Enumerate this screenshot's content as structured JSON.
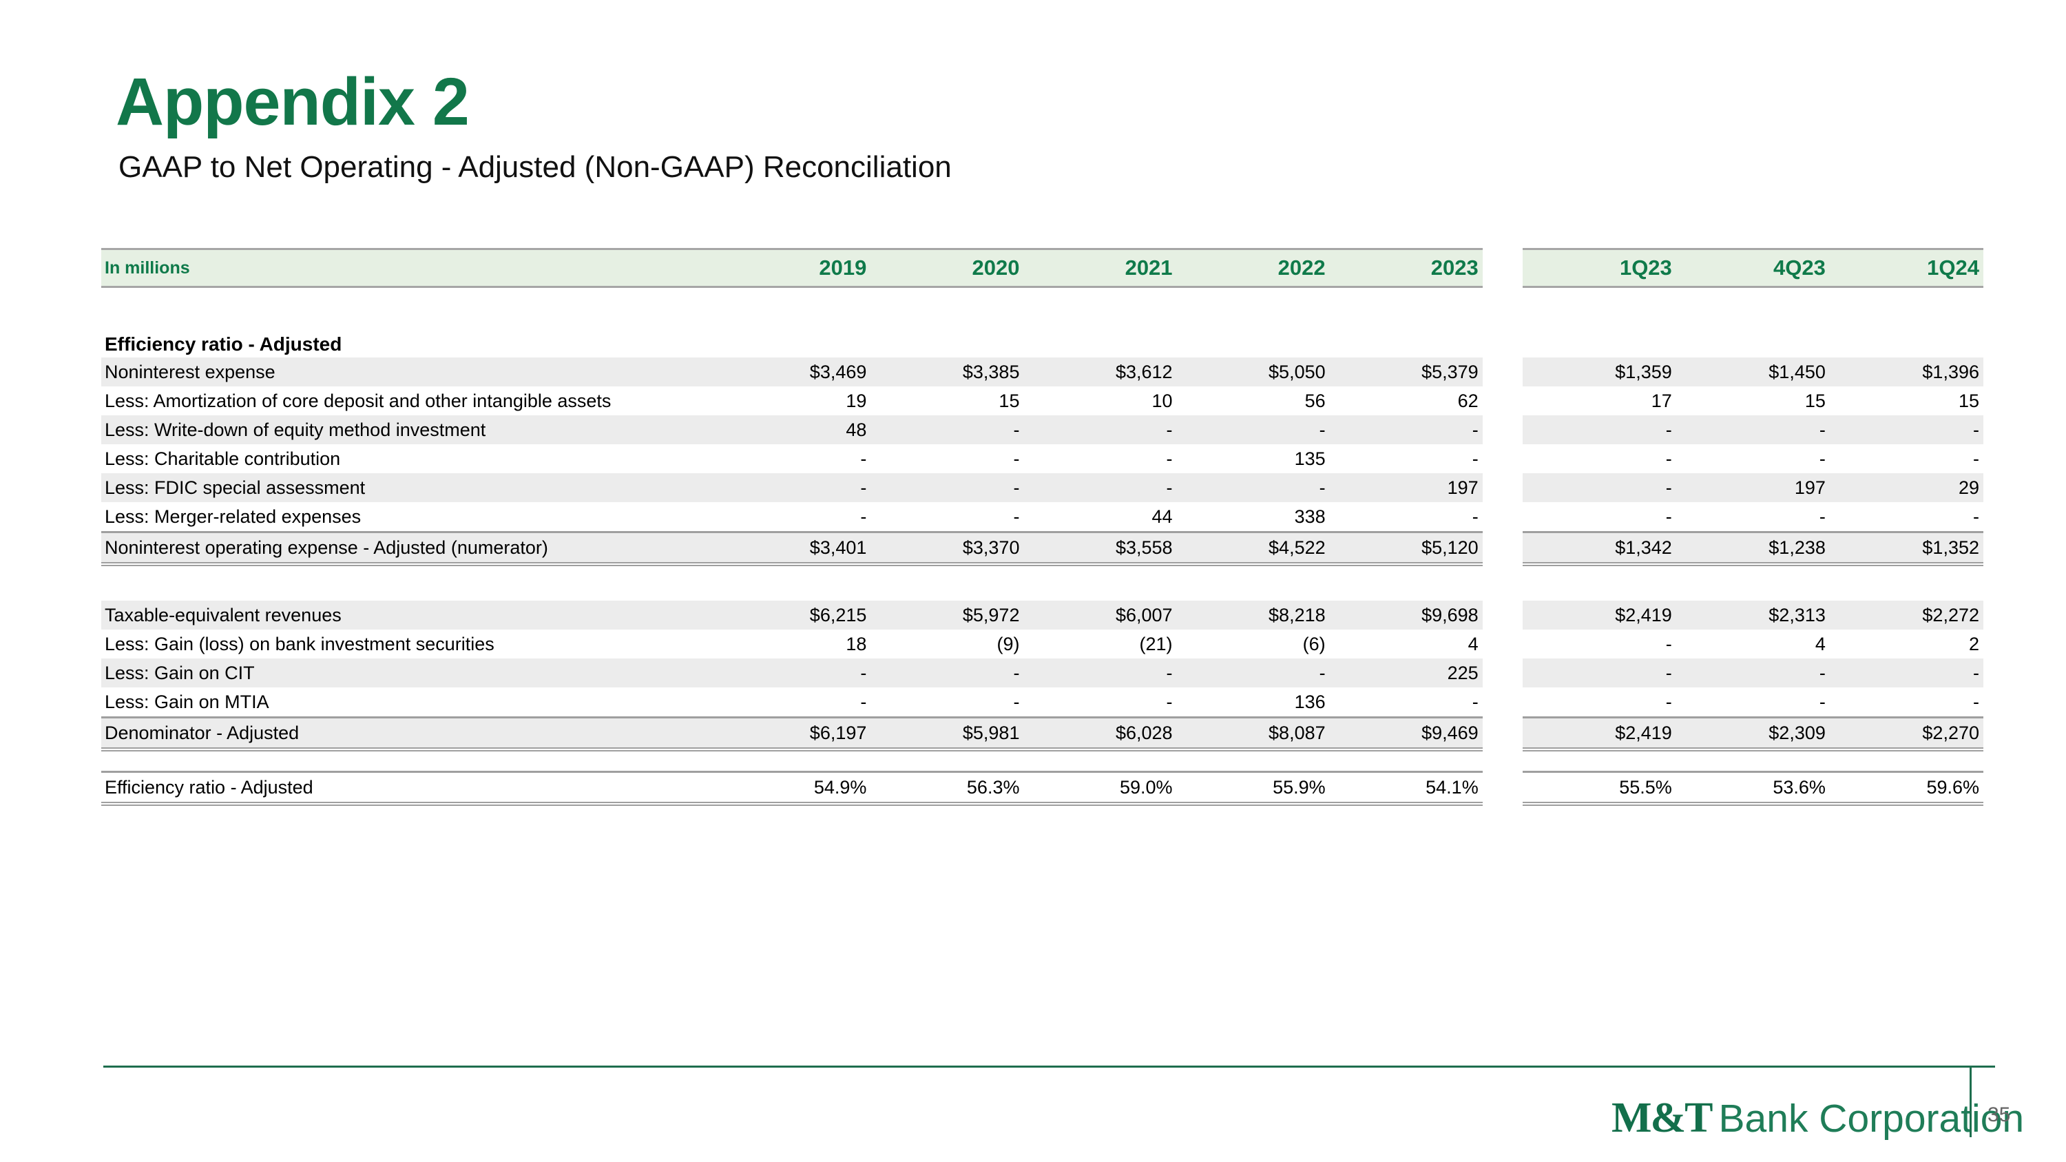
{
  "slide": {
    "title": "Appendix 2",
    "subtitle": "GAAP to Net Operating - Adjusted (Non-GAAP) Reconciliation",
    "page_number": "35",
    "logo_bold": "M&T",
    "logo_rest": "Bank Corporation"
  },
  "colors": {
    "brand_green": "#12774a",
    "header_band_bg": "#e6f0e3",
    "row_band_bg": "#ececec",
    "border_gray": "#9f9f9f",
    "footer_rule_green": "#1e6e4e",
    "page_number_gray": "#666666"
  },
  "table": {
    "unit_label": "In millions",
    "columns": [
      "2019",
      "2020",
      "2021",
      "2022",
      "2023",
      "1Q23",
      "4Q23",
      "1Q24"
    ],
    "gap_after_column_index": 4,
    "sections": [
      {
        "heading": "Efficiency ratio - Adjusted",
        "spacer_before": 60,
        "rows": [
          {
            "label": "Noninterest expense",
            "values": [
              "$3,469",
              "$3,385",
              "$3,612",
              "$5,050",
              "$5,379",
              "$1,359",
              "$1,450",
              "$1,396"
            ],
            "shaded": true,
            "total": false
          },
          {
            "label": "Less: Amortization of core deposit and other intangible assets",
            "values": [
              "19",
              "15",
              "10",
              "56",
              "62",
              "17",
              "15",
              "15"
            ],
            "shaded": false,
            "total": false
          },
          {
            "label": "Less: Write-down of equity method investment",
            "values": [
              "48",
              "-",
              "-",
              "-",
              "-",
              "-",
              "-",
              "-"
            ],
            "shaded": true,
            "total": false
          },
          {
            "label": "Less: Charitable contribution",
            "values": [
              "-",
              "-",
              "-",
              "135",
              "-",
              "-",
              "-",
              "-"
            ],
            "shaded": false,
            "total": false
          },
          {
            "label": "Less: FDIC special assessment",
            "values": [
              "-",
              "-",
              "-",
              "-",
              "197",
              "-",
              "197",
              "29"
            ],
            "shaded": true,
            "total": false
          },
          {
            "label": "Less: Merger-related expenses",
            "values": [
              "-",
              "-",
              "44",
              "338",
              "-",
              "-",
              "-",
              "-"
            ],
            "shaded": false,
            "total": false
          },
          {
            "label": "Noninterest operating expense - Adjusted (numerator)",
            "values": [
              "$3,401",
              "$3,370",
              "$3,558",
              "$4,522",
              "$5,120",
              "$1,342",
              "$1,238",
              "$1,352"
            ],
            "shaded": true,
            "total": true
          }
        ]
      },
      {
        "heading": null,
        "spacer_before": 50,
        "rows": [
          {
            "label": "Taxable-equivalent revenues",
            "values": [
              "$6,215",
              "$5,972",
              "$6,007",
              "$8,218",
              "$9,698",
              "$2,419",
              "$2,313",
              "$2,272"
            ],
            "shaded": true,
            "total": false
          },
          {
            "label": "Less: Gain (loss) on bank investment securities",
            "values": [
              "18",
              "(9)",
              "(21)",
              "(6)",
              "4",
              "-",
              "4",
              "2"
            ],
            "shaded": false,
            "total": false
          },
          {
            "label": "Less: Gain on CIT",
            "values": [
              "-",
              "-",
              "-",
              "-",
              "225",
              "-",
              "-",
              "-"
            ],
            "shaded": true,
            "total": false
          },
          {
            "label": "Less: Gain on MTIA",
            "values": [
              "-",
              "-",
              "-",
              "136",
              "-",
              "-",
              "-",
              "-"
            ],
            "shaded": false,
            "total": false
          },
          {
            "label": "Denominator - Adjusted",
            "values": [
              "$6,197",
              "$5,981",
              "$6,028",
              "$8,087",
              "$9,469",
              "$2,419",
              "$2,309",
              "$2,270"
            ],
            "shaded": true,
            "total": true
          }
        ]
      },
      {
        "heading": null,
        "spacer_before": 28,
        "rows": [
          {
            "label": "Efficiency ratio - Adjusted",
            "values": [
              "54.9%",
              "56.3%",
              "59.0%",
              "55.9%",
              "54.1%",
              "55.5%",
              "53.6%",
              "59.6%"
            ],
            "shaded": false,
            "total": true
          }
        ]
      }
    ]
  }
}
